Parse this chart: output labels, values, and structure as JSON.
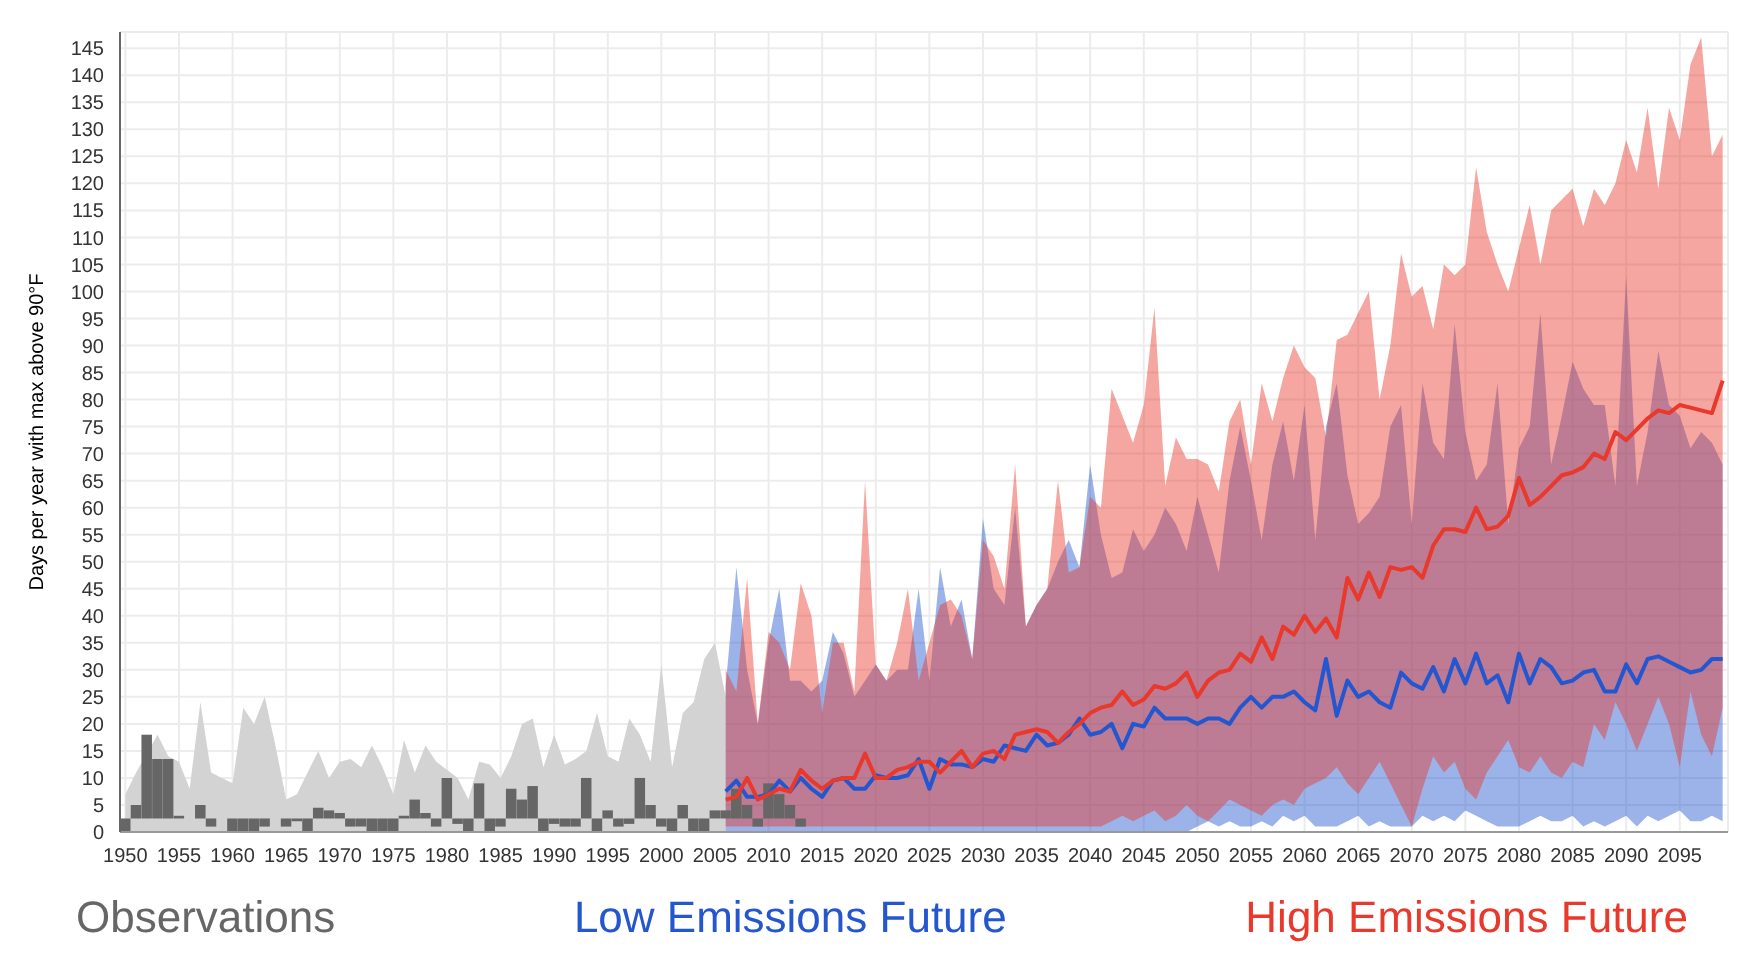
{
  "chart_data": {
    "type": "line",
    "ylabel": "Days per year with max above 90°F",
    "xlim": [
      1949.5,
      2099.5
    ],
    "xticks": [
      1950,
      1955,
      1960,
      1965,
      1970,
      1975,
      1980,
      1985,
      1990,
      1995,
      2000,
      2005,
      2010,
      2015,
      2020,
      2025,
      2030,
      2035,
      2040,
      2045,
      2050,
      2055,
      2060,
      2065,
      2070,
      2075,
      2080,
      2085,
      2090,
      2095
    ],
    "ylim": [
      0,
      148
    ],
    "yticks": [
      0,
      5,
      10,
      15,
      20,
      25,
      30,
      35,
      40,
      45,
      50,
      55,
      60,
      65,
      70,
      75,
      80,
      85,
      90,
      95,
      100,
      105,
      110,
      115,
      120,
      125,
      130,
      135,
      140,
      145
    ],
    "grid": true,
    "legend": "bottom",
    "series": [
      {
        "type": "area",
        "color": "#d3d3d3",
        "x": [
          1950,
          1951,
          1952,
          1953,
          1954,
          1955,
          1956,
          1957,
          1958,
          1959,
          1960,
          1961,
          1962,
          1963,
          1964,
          1965,
          1966,
          1967,
          1968,
          1969,
          1970,
          1971,
          1972,
          1973,
          1974,
          1975,
          1976,
          1977,
          1978,
          1979,
          1980,
          1981,
          1982,
          1983,
          1984,
          1985,
          1986,
          1987,
          1988,
          1989,
          1990,
          1991,
          1992,
          1993,
          1994,
          1995,
          1996,
          1997,
          1998,
          1999,
          2000,
          2001,
          2002,
          2003,
          2004,
          2005,
          2006
        ],
        "values": [
          7,
          11,
          null,
          18,
          14,
          13,
          8,
          24,
          11,
          10,
          9,
          23,
          20,
          25,
          16,
          6,
          7,
          11,
          15,
          10,
          13,
          13.5,
          12,
          16,
          12,
          7,
          17,
          11,
          16,
          13,
          null,
          10,
          6,
          13,
          12.5,
          10,
          14,
          20,
          21,
          12,
          18,
          12.5,
          13.5,
          15,
          22,
          14,
          13,
          21,
          18,
          13,
          31,
          12,
          22,
          24,
          32,
          35,
          25
        ]
      },
      {
        "name": "Observations",
        "type": "bar",
        "color": "#666666",
        "x": [
          1950,
          1951,
          1952,
          1953,
          1954,
          1955,
          1956,
          1957,
          1958,
          1959,
          1960,
          1961,
          1962,
          1963,
          1964,
          1965,
          1966,
          1967,
          1968,
          1969,
          1970,
          1971,
          1972,
          1973,
          1974,
          1975,
          1976,
          1977,
          1978,
          1979,
          1980,
          1981,
          1982,
          1983,
          1984,
          1985,
          1986,
          1987,
          1988,
          1989,
          1990,
          1991,
          1992,
          1993,
          1994,
          1995,
          1996,
          1997,
          1998,
          1999,
          2000,
          2001,
          2002,
          2003,
          2004,
          2005,
          2006,
          2007,
          2008,
          2009,
          2010,
          2011,
          2012,
          2013
        ],
        "base": [
          2.5,
          2.5,
          2.5,
          2.5,
          2.5,
          2.5,
          null,
          2.5,
          2.5,
          null,
          2.5,
          2.5,
          2.5,
          2.5,
          null,
          2.5,
          2.5,
          2.5,
          2.5,
          2.5,
          2.5,
          2.5,
          2.5,
          2.5,
          2.5,
          2.5,
          2.5,
          2.5,
          2.5,
          2.5,
          2.5,
          2.5,
          2.5,
          2.5,
          2.5,
          2.5,
          2.5,
          2.5,
          2.5,
          2.5,
          2.5,
          2.5,
          2.5,
          2.5,
          2.5,
          2.5,
          2.5,
          2.5,
          2.5,
          2.5,
          2.5,
          2.5,
          2.5,
          2.5,
          2.5,
          2.5,
          2.5,
          2.5,
          2.5,
          2.5,
          2.5,
          2.5,
          2.5,
          2.5
        ],
        "values": [
          -2.5,
          2.5,
          15.5,
          11,
          11,
          0.5,
          null,
          2.5,
          -1.5,
          null,
          -2.5,
          -2.5,
          -2.5,
          -1.5,
          null,
          -1.5,
          -0.5,
          -2.5,
          2,
          1.5,
          1,
          -1.5,
          -1.5,
          -2.5,
          -2.5,
          -2.5,
          0.5,
          3.5,
          1,
          -1.5,
          7.5,
          -1,
          -2.5,
          6.5,
          -2.5,
          -1.5,
          5.5,
          3.5,
          6,
          -2.5,
          -1,
          -1.5,
          -1.5,
          7.5,
          -2.5,
          1.5,
          -1.5,
          -1,
          7.5,
          2.5,
          -1.5,
          -2.5,
          2.5,
          -2.5,
          -2.5,
          1.5,
          1.5,
          5.5,
          2.5,
          -1.5,
          6.5,
          4.5,
          2.5,
          -1.5
        ]
      },
      {
        "name": "Low Emissions Future",
        "color": "#2457cf",
        "x": [
          2006,
          2007,
          2008,
          2009,
          2010,
          2011,
          2012,
          2013,
          2014,
          2015,
          2016,
          2017,
          2018,
          2019,
          2020,
          2021,
          2022,
          2023,
          2024,
          2025,
          2026,
          2027,
          2028,
          2029,
          2030,
          2031,
          2032,
          2033,
          2034,
          2035,
          2036,
          2037,
          2038,
          2039,
          2040,
          2041,
          2042,
          2043,
          2044,
          2045,
          2046,
          2047,
          2048,
          2049,
          2050,
          2051,
          2052,
          2053,
          2054,
          2055,
          2056,
          2057,
          2058,
          2059,
          2060,
          2061,
          2062,
          2063,
          2064,
          2065,
          2066,
          2067,
          2068,
          2069,
          2070,
          2071,
          2072,
          2073,
          2074,
          2075,
          2076,
          2077,
          2078,
          2079,
          2080,
          2081,
          2082,
          2083,
          2084,
          2085,
          2086,
          2087,
          2088,
          2089,
          2090,
          2091,
          2092,
          2093,
          2094,
          2095,
          2096,
          2097,
          2098,
          2099
        ],
        "values": [
          7.5,
          9.5,
          6.5,
          6.5,
          7,
          9.5,
          7.5,
          10,
          8,
          6.5,
          9.5,
          10,
          8,
          8,
          10.5,
          10,
          10,
          10.5,
          13.5,
          8,
          13.5,
          12.5,
          12.5,
          12,
          13.5,
          13,
          16,
          15.5,
          15,
          18,
          16,
          16.5,
          18,
          21,
          18,
          18.5,
          20,
          15.5,
          20,
          19.5,
          23,
          21,
          21,
          21,
          20,
          21,
          21,
          20,
          23,
          25,
          23,
          25,
          25,
          26,
          24,
          22.5,
          32,
          21.5,
          28,
          25,
          26,
          24,
          23,
          29.5,
          27.5,
          26.5,
          30.5,
          26,
          32,
          27.5,
          33,
          27.5,
          29,
          24,
          33,
          27.5,
          32,
          30.5,
          27.5,
          28,
          29.5,
          30,
          26,
          26,
          31,
          27.5,
          32,
          32.5,
          31.5,
          30.5,
          29.5,
          30,
          32,
          32
        ],
        "lower": [
          0,
          0,
          0,
          0,
          0,
          0,
          0,
          0,
          0,
          0,
          0,
          0,
          0,
          0,
          0,
          0,
          0,
          0,
          0,
          0,
          0,
          0,
          0,
          0,
          0,
          0,
          0,
          0,
          0,
          0,
          0,
          0,
          0,
          0,
          0,
          0,
          0,
          0,
          0,
          0,
          0,
          0,
          0,
          0,
          1,
          2,
          1,
          2,
          1,
          1,
          2,
          1,
          3,
          2,
          3,
          1,
          1,
          1,
          2,
          3,
          1,
          2,
          1,
          1,
          1,
          3,
          2,
          3,
          2,
          4,
          3,
          2,
          1,
          1,
          1,
          2,
          3,
          2,
          2,
          3,
          1,
          2,
          1,
          2,
          3,
          1,
          3,
          2,
          3,
          4,
          2,
          2,
          3,
          2
        ],
        "upper": [
          27,
          49,
          30,
          20,
          35,
          45,
          28,
          28,
          26,
          28,
          37,
          33,
          25,
          28,
          31,
          28,
          30,
          30,
          45,
          28,
          49,
          38,
          43,
          32,
          58,
          45,
          42,
          60,
          38,
          42,
          45,
          50,
          54,
          49,
          68,
          55,
          47,
          48,
          56,
          52,
          55,
          60,
          57,
          52,
          62,
          55,
          48,
          65,
          75,
          65,
          54,
          68,
          76,
          65,
          79,
          54,
          75,
          83,
          66,
          57,
          59,
          62,
          75,
          79,
          57,
          83,
          72,
          69,
          94,
          74,
          65,
          68,
          83,
          57,
          71,
          75,
          96,
          68,
          77,
          87,
          82,
          79,
          79,
          64,
          103,
          64,
          74,
          89,
          79,
          77,
          71,
          74,
          72,
          68
        ]
      },
      {
        "name": "High Emissions Future",
        "color": "#e8392c",
        "x": [
          2006,
          2007,
          2008,
          2009,
          2010,
          2011,
          2012,
          2013,
          2014,
          2015,
          2016,
          2017,
          2018,
          2019,
          2020,
          2021,
          2022,
          2023,
          2024,
          2025,
          2026,
          2027,
          2028,
          2029,
          2030,
          2031,
          2032,
          2033,
          2034,
          2035,
          2036,
          2037,
          2038,
          2039,
          2040,
          2041,
          2042,
          2043,
          2044,
          2045,
          2046,
          2047,
          2048,
          2049,
          2050,
          2051,
          2052,
          2053,
          2054,
          2055,
          2056,
          2057,
          2058,
          2059,
          2060,
          2061,
          2062,
          2063,
          2064,
          2065,
          2066,
          2067,
          2068,
          2069,
          2070,
          2071,
          2072,
          2073,
          2074,
          2075,
          2076,
          2077,
          2078,
          2079,
          2080,
          2081,
          2082,
          2083,
          2084,
          2085,
          2086,
          2087,
          2088,
          2089,
          2090,
          2091,
          2092,
          2093,
          2094,
          2095,
          2096,
          2097,
          2098,
          2099
        ],
        "values": [
          6,
          6.5,
          10,
          6,
          7,
          8,
          7.5,
          11.5,
          9.5,
          8,
          9.5,
          10,
          10,
          14.5,
          10,
          10,
          11.5,
          12,
          13,
          13,
          11,
          13,
          15,
          12,
          14.5,
          15,
          13.5,
          18,
          18.5,
          19,
          18.5,
          16.5,
          18.5,
          20,
          22,
          23,
          23.5,
          26,
          23.5,
          24.5,
          27,
          26.5,
          27.5,
          29.5,
          25,
          28,
          29.5,
          30,
          33,
          31.5,
          36,
          32,
          38,
          36.5,
          40,
          37,
          39.5,
          36,
          47,
          43,
          48,
          43.5,
          49,
          48.5,
          49,
          47,
          53,
          56,
          56,
          55.5,
          60,
          56,
          56.5,
          58.5,
          65.5,
          60.5,
          62,
          64,
          66,
          66.5,
          67.5,
          70,
          69,
          74,
          72.5,
          74.5,
          76.5,
          78,
          77.5,
          79,
          78.5,
          78,
          77.5,
          83.5
        ],
        "lower": [
          1,
          1,
          1,
          1,
          1,
          1,
          1,
          1,
          1,
          1,
          1,
          1,
          1,
          1,
          1,
          1,
          1,
          1,
          1,
          1,
          1,
          1,
          1,
          1,
          1,
          1,
          1,
          1,
          1,
          1,
          1,
          1,
          1,
          1,
          1,
          1,
          2,
          3,
          2,
          3,
          4,
          2,
          3,
          5,
          3,
          2,
          4,
          6,
          5,
          4,
          3,
          5,
          6,
          5,
          8,
          9,
          10,
          12,
          9,
          7,
          10,
          13,
          9,
          5,
          1,
          8,
          14,
          11,
          13,
          8,
          6,
          11,
          14,
          17,
          12,
          11,
          14,
          11,
          10,
          13,
          12,
          20,
          17,
          24,
          20,
          15,
          20,
          25,
          20,
          12,
          26,
          18,
          14,
          23
        ],
        "upper": [
          30,
          26,
          47,
          20,
          37,
          35,
          30,
          46,
          40,
          22,
          35,
          35,
          26,
          65,
          31,
          28,
          35,
          45,
          28,
          35,
          42,
          43,
          40,
          32,
          54,
          51,
          45,
          68,
          38,
          42,
          45,
          65,
          48,
          49,
          62,
          60,
          82,
          77,
          72,
          79,
          97,
          64,
          73,
          69,
          69,
          68,
          63,
          76,
          80,
          68,
          83,
          76,
          84,
          90,
          86,
          84,
          73,
          91,
          92,
          96,
          100,
          80,
          90,
          107,
          99,
          101,
          93,
          105,
          103,
          105,
          123,
          111,
          105,
          100,
          108,
          116,
          105,
          115,
          117,
          119,
          112,
          119,
          116,
          120,
          128,
          122,
          134,
          119,
          134,
          128,
          142,
          147,
          125,
          129
        ]
      }
    ]
  }
}
